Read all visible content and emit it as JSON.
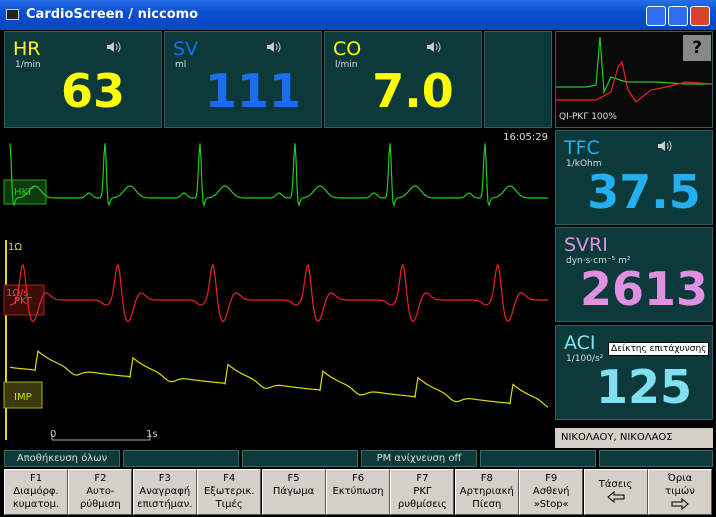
{
  "window": {
    "title": "CardioScreen / niccomo"
  },
  "params": [
    {
      "label": "HR",
      "unit": "1/min",
      "value": "63"
    },
    {
      "label": "SV",
      "unit": "ml",
      "value": "111"
    },
    {
      "label": "CO",
      "unit": "l/min",
      "value": "7.0"
    }
  ],
  "preview": {
    "label": "QI-ΡΚΓ 100%",
    "help": "?"
  },
  "traces": {
    "time": "16:05:29",
    "ecg": "ΗΚΓ",
    "scale1": "1Ω",
    "scale2": "1Ω/s",
    "icg": "ΡΚΓ",
    "imp": "IMP",
    "scale_start": "0",
    "scale_end": "1s"
  },
  "side": [
    {
      "label": "TFC",
      "unit": "1/kOhm",
      "value": "37.5"
    },
    {
      "label": "SVRI",
      "unit": "dyn·s·cm⁻⁵ m²",
      "value": "2613"
    },
    {
      "label": "ACI",
      "unit": "1/100/s²",
      "value": "125",
      "tooltip": "Δείκτης επιτάχυνσης"
    }
  ],
  "patient": "ΝΙΚΟΛΑΟΥ, ΝΙΚΟΛΑΟΣ",
  "status": {
    "save": "Αποθήκευση όλων",
    "pm": "PM ανίχνευση off"
  },
  "keys": [
    [
      "F1",
      "Διαμόρφ.",
      "κυματομ."
    ],
    [
      "F2",
      "Αυτο-",
      "ρύθμιση"
    ],
    [
      "F3",
      "Αναγραφή",
      "επιστήμαν."
    ],
    [
      "F4",
      "Εξωτερικ.",
      "Τιμές"
    ],
    [
      "F5",
      "Πάγωμα"
    ],
    [
      "F6",
      "Εκτύπωση"
    ],
    [
      "F7",
      "ΡΚΓ",
      "ρυθμίσεις"
    ],
    [
      "F8",
      "Αρτηριακή",
      "Πίεση"
    ],
    [
      "F9",
      "Ασθενή",
      "»Stop«"
    ],
    [
      "Τάσεις"
    ],
    [
      "Όρια",
      "τιμών"
    ]
  ]
}
